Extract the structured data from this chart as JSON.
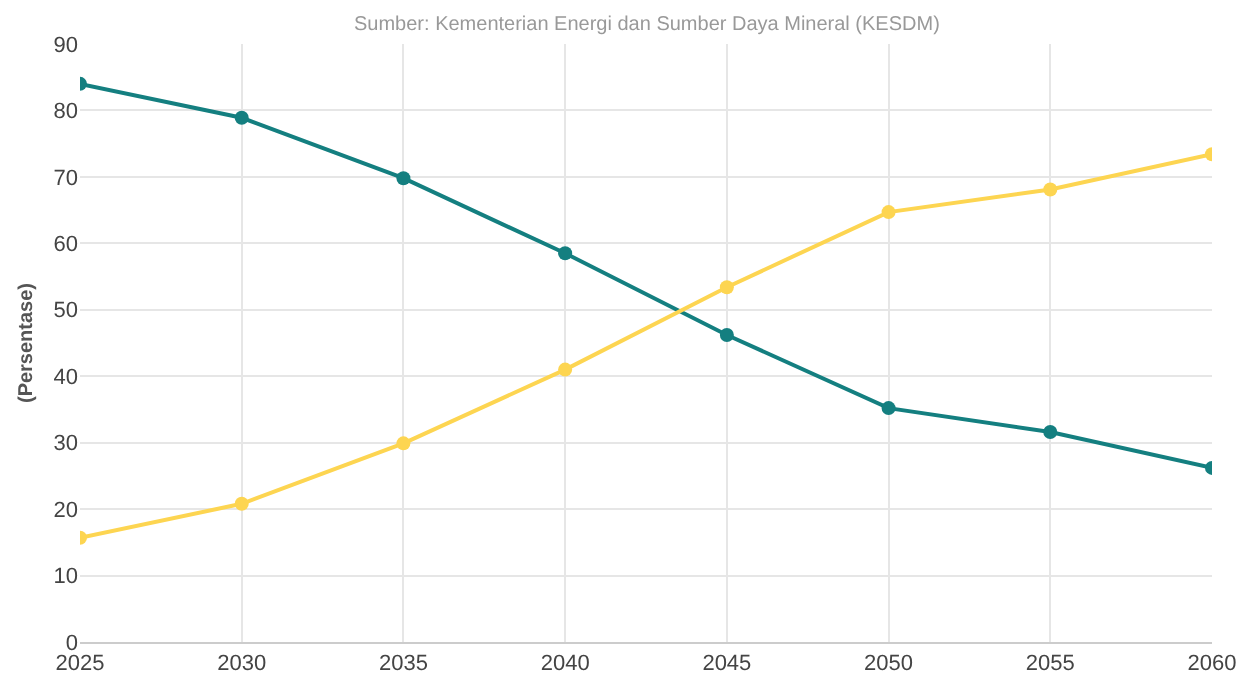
{
  "chart_data": {
    "type": "line",
    "subtitle": "Sumber: Kementerian Energi dan Sumber Daya Mineral (KESDM)",
    "ylabel": "(Persentase)",
    "x": [
      2025,
      2030,
      2035,
      2040,
      2045,
      2050,
      2055,
      2060
    ],
    "series": [
      {
        "color": "#147f80",
        "values": [
          84,
          78.9,
          69.8,
          58.5,
          46.2,
          35.2,
          31.6,
          26.2
        ]
      },
      {
        "color": "#fdd551",
        "values": [
          15.7,
          20.8,
          29.9,
          41,
          53.4,
          64.7,
          68.1,
          73.4
        ]
      }
    ],
    "xlim": [
      2025,
      2060
    ],
    "xticks": [
      2025,
      2030,
      2035,
      2040,
      2045,
      2050,
      2055,
      2060
    ],
    "ylim": [
      0,
      90
    ],
    "yticks": [
      0,
      10,
      20,
      30,
      40,
      50,
      60,
      70,
      80,
      90
    ],
    "grid": true,
    "marker": "circle",
    "line_style": "solid"
  }
}
